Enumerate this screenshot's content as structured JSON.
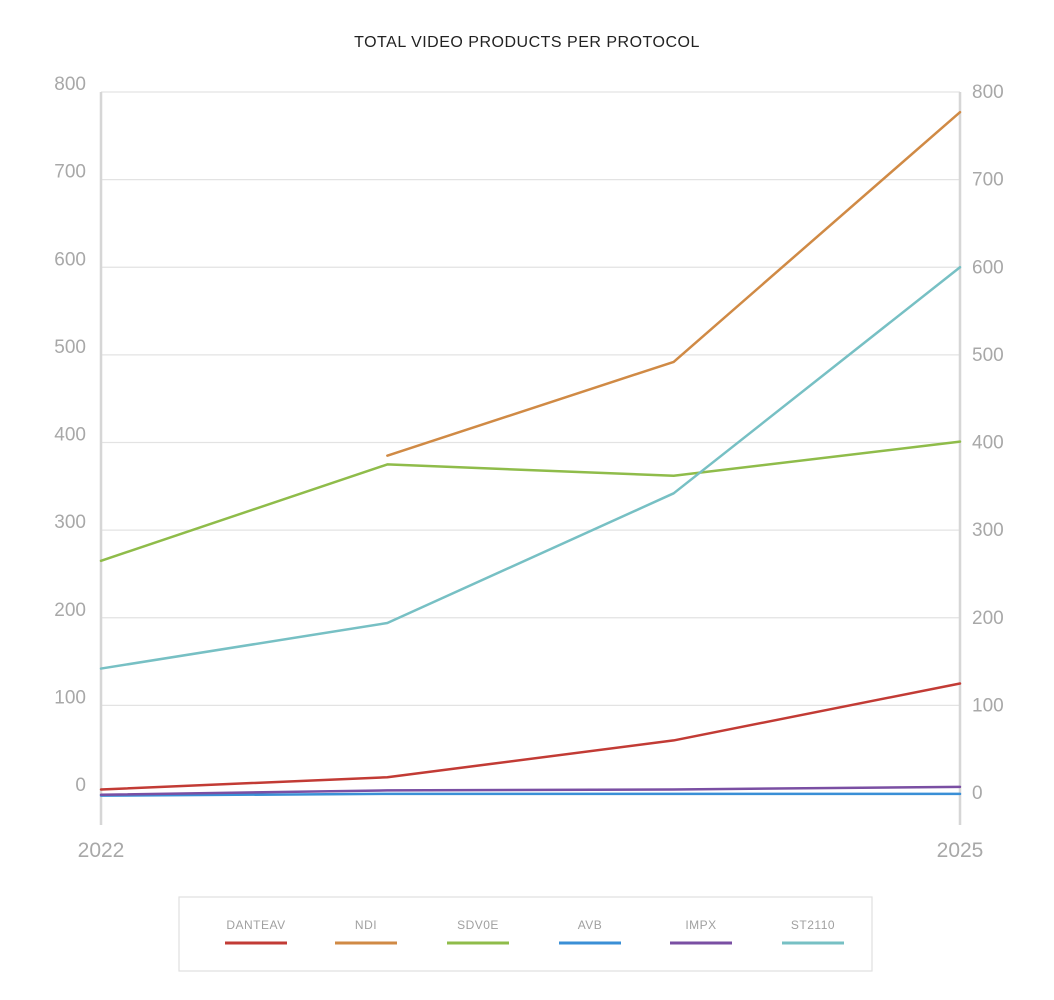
{
  "chart_data": {
    "type": "line",
    "title": "TOTAL VIDEO PRODUCTS PER PROTOCOL",
    "x": [
      "2022",
      "",
      "",
      "2025"
    ],
    "x_tick_labels": [
      "2022",
      "2025"
    ],
    "y_ticks": [
      "0",
      "100",
      "200",
      "300",
      "400",
      "500",
      "600",
      "700",
      "800"
    ],
    "ylim": [
      0,
      800
    ],
    "grid": true,
    "legend_position": "bottom",
    "series": [
      {
        "name": "DANTEAV",
        "color": "#c23b35",
        "values": [
          4,
          18,
          60,
          125
        ]
      },
      {
        "name": "NDI",
        "color": "#d08a45",
        "values": [
          null,
          385,
          492,
          777
        ]
      },
      {
        "name": "SDV0E",
        "color": "#8fbc4a",
        "values": [
          265,
          375,
          362,
          401
        ]
      },
      {
        "name": "AVB",
        "color": "#3a8fd6",
        "values": [
          -3,
          -1,
          -1,
          -1
        ]
      },
      {
        "name": "IMPX",
        "color": "#7a4fa3",
        "values": [
          -2,
          3,
          4,
          7
        ]
      },
      {
        "name": "ST2110",
        "color": "#77c0c4",
        "values": [
          142,
          194,
          342,
          600
        ]
      }
    ]
  }
}
